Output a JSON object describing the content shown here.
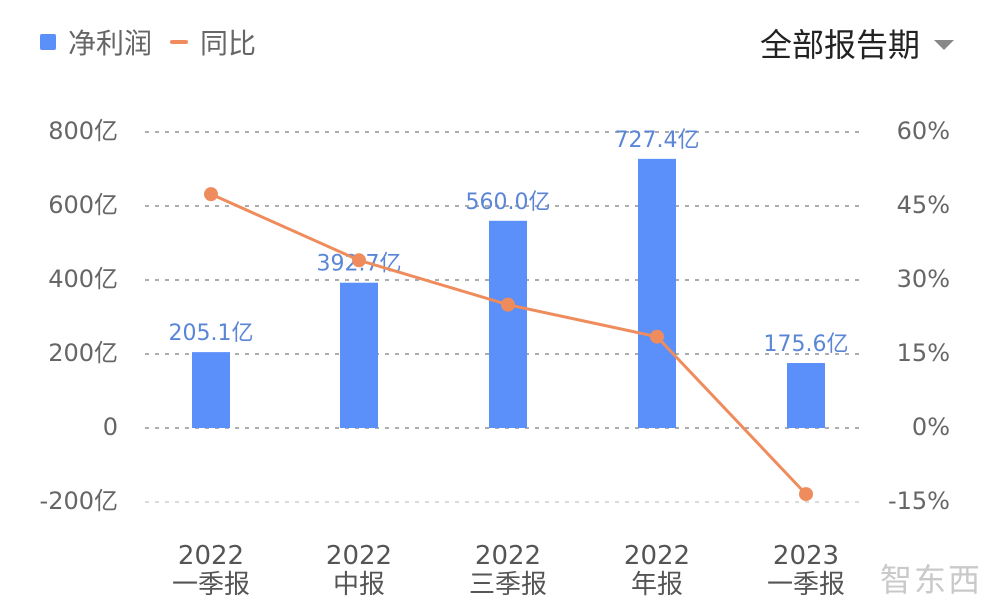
{
  "legend": {
    "bar_label": "净利润",
    "line_label": "同比"
  },
  "period_selector": {
    "label": "全部报告期"
  },
  "watermark": "智东西",
  "colors": {
    "bar": "#5b8ff9",
    "line": "#ef8c5d",
    "grid": "#999999",
    "bar_label": "#5b86d6"
  },
  "chart_data": {
    "type": "bar",
    "categories": [
      [
        "2022",
        "一季报"
      ],
      [
        "2022",
        "中报"
      ],
      [
        "2022",
        "三季报"
      ],
      [
        "2022",
        "年报"
      ],
      [
        "2023",
        "一季报"
      ]
    ],
    "series": [
      {
        "name": "净利润",
        "type": "bar",
        "axis": "left",
        "values": [
          205.1,
          392.7,
          560.0,
          727.4,
          175.6
        ],
        "labels": [
          "205.1亿",
          "392.7亿",
          "560.0亿",
          "727.4亿",
          "175.6亿"
        ]
      },
      {
        "name": "同比",
        "type": "line",
        "axis": "right",
        "values": [
          47.4,
          34.0,
          25.0,
          18.5,
          -13.4
        ]
      }
    ],
    "y_left": {
      "ylim": [
        -200,
        800
      ],
      "ticks": [
        800,
        600,
        400,
        200,
        0,
        -200
      ],
      "tick_labels": [
        "800亿",
        "600亿",
        "400亿",
        "200亿",
        "0",
        "-200亿"
      ]
    },
    "y_right": {
      "ylim": [
        -15,
        60
      ],
      "ticks": [
        60,
        45,
        30,
        15,
        0,
        -15
      ],
      "tick_labels": [
        "60%",
        "45%",
        "30%",
        "15%",
        "0%",
        "-15%"
      ]
    },
    "grid": true,
    "legend_position": "top-left"
  }
}
